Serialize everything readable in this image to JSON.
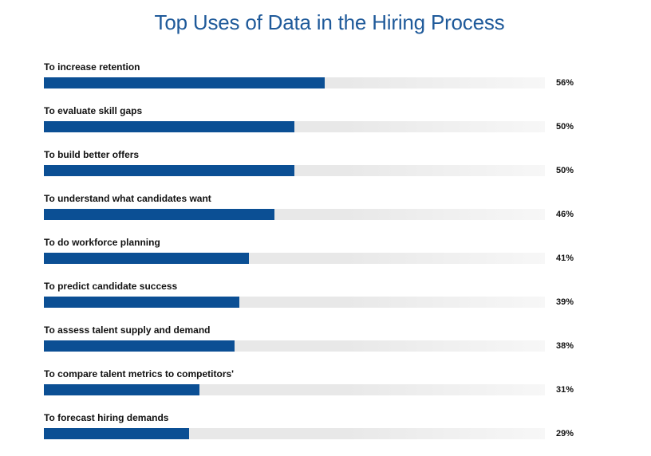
{
  "chart_data": {
    "type": "bar",
    "orientation": "horizontal",
    "title": "Top Uses of Data in the Hiring Process",
    "categories": [
      "To increase retention",
      "To evaluate skill gaps",
      "To build better offers",
      "To understand what candidates want",
      "To do workforce planning",
      "To predict candidate success",
      "To assess talent supply and demand",
      "To compare talent metrics to competitors'",
      "To forecast hiring demands"
    ],
    "values": [
      56,
      50,
      50,
      46,
      41,
      39,
      38,
      31,
      29
    ],
    "value_labels": [
      "56%",
      "50%",
      "50%",
      "46%",
      "41%",
      "39%",
      "38%",
      "31%",
      "29%"
    ],
    "xlim": [
      0,
      100
    ],
    "grid": false,
    "legend": "none",
    "bar_color": "#0b4f94",
    "track_color": "#e8e8e8"
  }
}
